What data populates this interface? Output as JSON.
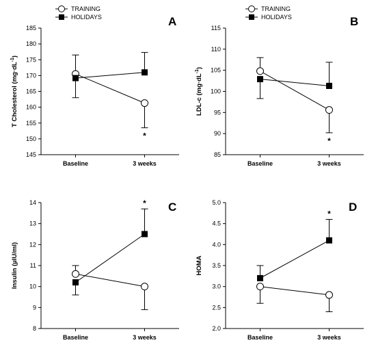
{
  "legend": {
    "series": [
      {
        "name": "TRAINING",
        "marker": "open-circle"
      },
      {
        "name": "HOLIDAYS",
        "marker": "filled-square"
      }
    ]
  },
  "chart_data": [
    {
      "panel": "A",
      "type": "line",
      "categories": [
        "Baseline",
        "3 weeks"
      ],
      "ylabel_main": "T Cholesterol (mg·dL",
      "ylabel_sup": "-1",
      "ylabel_tail": ")",
      "ylim": [
        145,
        185
      ],
      "yticks": [
        145,
        150,
        155,
        160,
        165,
        170,
        175,
        180,
        185
      ],
      "show_legend": true,
      "series": [
        {
          "name": "TRAINING",
          "marker": "open-circle",
          "values": [
            170.5,
            161.3
          ],
          "err_low": [
            163,
            153.5
          ],
          "err_high": [
            176.5,
            161.3
          ]
        },
        {
          "name": "HOLIDAYS",
          "marker": "filled-square",
          "values": [
            169.2,
            171
          ],
          "err_low": [
            169.2,
            171
          ],
          "err_high": [
            169.2,
            177.3
          ]
        }
      ],
      "significance": [
        {
          "category": 1,
          "position": "below",
          "text": "*"
        }
      ]
    },
    {
      "panel": "B",
      "type": "line",
      "categories": [
        "Baseline",
        "3 weeks"
      ],
      "ylabel_main": "LDL-c (mg·dL",
      "ylabel_sup": "-1",
      "ylabel_tail": ")",
      "ylim": [
        85,
        115
      ],
      "yticks": [
        85,
        90,
        95,
        100,
        105,
        110,
        115
      ],
      "show_legend": true,
      "series": [
        {
          "name": "TRAINING",
          "marker": "open-circle",
          "values": [
            104.8,
            95.6
          ],
          "err_low": [
            104.8,
            90.2
          ],
          "err_high": [
            108,
            95.6
          ]
        },
        {
          "name": "HOLIDAYS",
          "marker": "filled-square",
          "values": [
            102.9,
            101.3
          ],
          "err_low": [
            98.3,
            101.3
          ],
          "err_high": [
            102.9,
            106.9
          ]
        }
      ],
      "significance": [
        {
          "category": 1,
          "position": "below",
          "text": "*"
        }
      ]
    },
    {
      "panel": "C",
      "type": "line",
      "categories": [
        "Baseline",
        "3 weeks"
      ],
      "ylabel_main": "Insulin (µIU/ml)",
      "ylabel_sup": "",
      "ylabel_tail": "",
      "ylim": [
        8,
        14
      ],
      "yticks": [
        8,
        9,
        10,
        11,
        12,
        13,
        14
      ],
      "show_legend": false,
      "series": [
        {
          "name": "TRAINING",
          "marker": "open-circle",
          "values": [
            10.6,
            10.0
          ],
          "err_low": [
            10.6,
            8.9
          ],
          "err_high": [
            11.0,
            10.0
          ]
        },
        {
          "name": "HOLIDAYS",
          "marker": "filled-square",
          "values": [
            10.2,
            12.5
          ],
          "err_low": [
            9.6,
            12.5
          ],
          "err_high": [
            10.2,
            13.7
          ]
        }
      ],
      "significance": [
        {
          "category": 1,
          "position": "above",
          "text": "*"
        }
      ]
    },
    {
      "panel": "D",
      "type": "line",
      "categories": [
        "Baseline",
        "3 weeks"
      ],
      "ylabel_main": "HOMA",
      "ylabel_sup": "",
      "ylabel_tail": "",
      "ylim": [
        2.0,
        5.0
      ],
      "yticks": [
        "2.0",
        "2.5",
        "3.0",
        "3.5",
        "4.0",
        "4.5",
        "5.0"
      ],
      "show_legend": false,
      "series": [
        {
          "name": "TRAINING",
          "marker": "open-circle",
          "values": [
            3.0,
            2.8
          ],
          "err_low": [
            2.6,
            2.4
          ],
          "err_high": [
            3.0,
            2.8
          ]
        },
        {
          "name": "HOLIDAYS",
          "marker": "filled-square",
          "values": [
            3.2,
            4.1
          ],
          "err_low": [
            3.2,
            4.1
          ],
          "err_high": [
            3.5,
            4.6
          ]
        }
      ],
      "significance": [
        {
          "category": 1,
          "position": "above",
          "text": "*"
        }
      ]
    }
  ]
}
